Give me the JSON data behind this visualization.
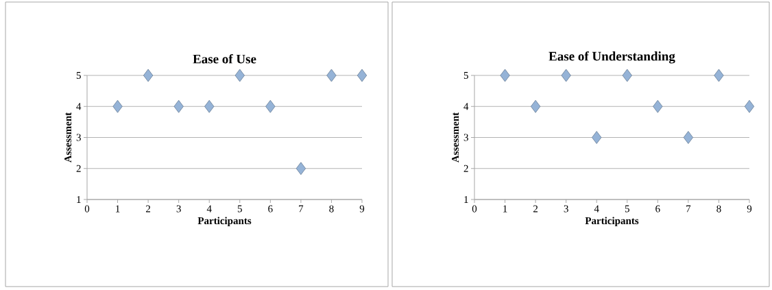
{
  "chart_data": [
    {
      "type": "scatter",
      "title": "Ease of Use",
      "xlabel": "Participants",
      "ylabel": "Assessment",
      "x": [
        1,
        2,
        3,
        4,
        5,
        6,
        7,
        8,
        9
      ],
      "values": [
        4,
        5,
        4,
        4,
        5,
        4,
        2,
        5,
        5
      ],
      "color": "#95b3d7",
      "marker": "diamond",
      "grid": "y",
      "xlim": [
        0,
        9
      ],
      "ylim": [
        1,
        5
      ],
      "xticks": [
        0,
        1,
        2,
        3,
        4,
        5,
        6,
        7,
        8,
        9
      ],
      "yticks": [
        1,
        2,
        3,
        4,
        5
      ]
    },
    {
      "type": "scatter",
      "title": "Ease of Understanding",
      "xlabel": "Participants",
      "ylabel": "Assessment",
      "x": [
        1,
        2,
        3,
        4,
        5,
        6,
        7,
        8,
        9
      ],
      "values": [
        5,
        4,
        5,
        3,
        5,
        4,
        3,
        5,
        4
      ],
      "color": "#95b3d7",
      "marker": "diamond",
      "grid": "y",
      "xlim": [
        0,
        9
      ],
      "ylim": [
        1,
        5
      ],
      "xticks": [
        0,
        1,
        2,
        3,
        4,
        5,
        6,
        7,
        8,
        9
      ],
      "yticks": [
        1,
        2,
        3,
        4,
        5
      ]
    }
  ]
}
